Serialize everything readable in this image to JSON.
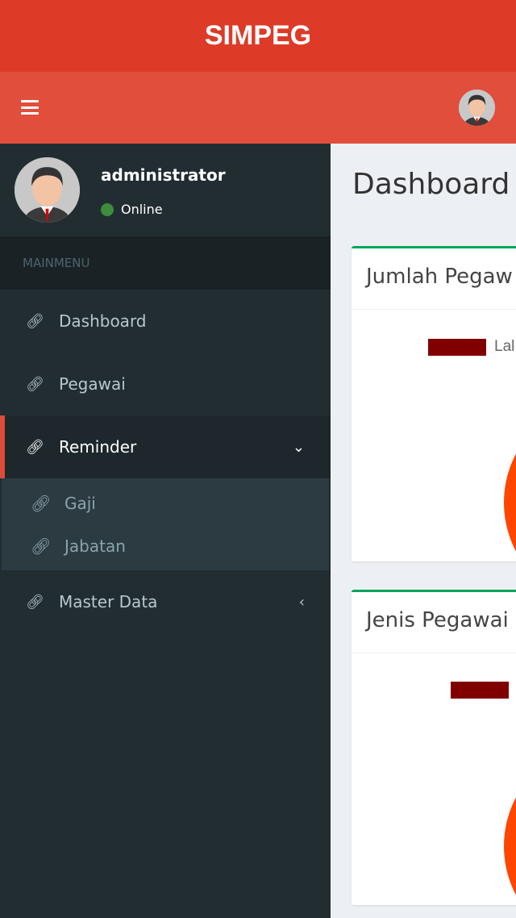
{
  "app": {
    "title": "SIMPEG"
  },
  "user": {
    "name": "administrator",
    "status": "Online",
    "status_color": "#3c8d3c"
  },
  "sidebar": {
    "header": "MAINMENU",
    "items": [
      {
        "label": "Dashboard",
        "icon": "link-icon"
      },
      {
        "label": "Pegawai",
        "icon": "link-icon"
      },
      {
        "label": "Reminder",
        "icon": "link-icon",
        "active": true,
        "expanded": true,
        "children": [
          {
            "label": "Gaji"
          },
          {
            "label": "Jabatan"
          }
        ]
      },
      {
        "label": "Master Data",
        "icon": "link-icon"
      }
    ]
  },
  "main": {
    "title": "Dashboard",
    "cards": [
      {
        "title": "Jumlah Pegaw",
        "legend": "Lal",
        "legend_color": "#800000",
        "pie_color": "#ff4500",
        "border_color": "#00a65a"
      },
      {
        "title": "Jenis Pegawai",
        "legend": "",
        "legend_color": "#800000",
        "pie_color": "#ff4500",
        "border_color": "#00a65a"
      }
    ]
  }
}
